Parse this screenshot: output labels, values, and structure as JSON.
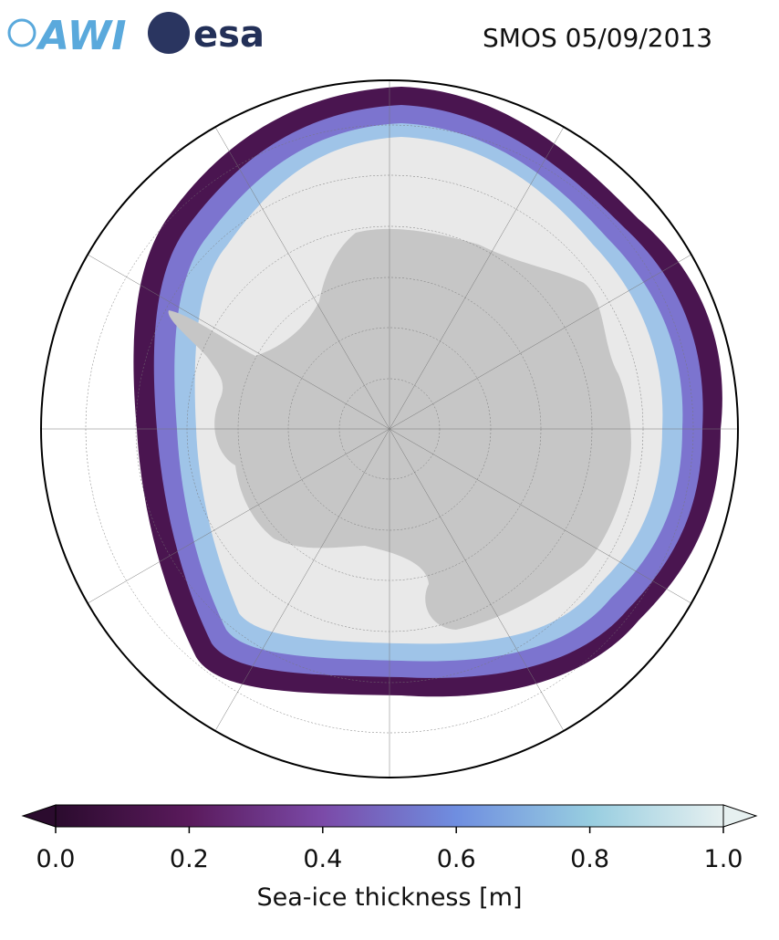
{
  "header": {
    "logo_left": "AWI",
    "logo_right": "esa",
    "title": "SMOS 05/09/2013"
  },
  "map": {
    "land_color": "#c6c6c6",
    "ice_color": "#e9e9e9",
    "outline": "#000000"
  },
  "colorbar": {
    "label": "Sea-ice thickness [m]",
    "lim": [
      0,
      1
    ],
    "ticks": [
      {
        "value": 0,
        "label": "0.0"
      },
      {
        "value": 0.2,
        "label": "0.2"
      },
      {
        "value": 0.4,
        "label": "0.4"
      },
      {
        "value": 0.6,
        "label": "0.6"
      },
      {
        "value": 0.8,
        "label": "0.8"
      },
      {
        "value": 1,
        "label": "1.0"
      }
    ],
    "colors": [
      "#2b0b2e",
      "#5a1a5c",
      "#7b4aa8",
      "#6f8ee0",
      "#97cde0",
      "#e6f0f0"
    ]
  }
}
